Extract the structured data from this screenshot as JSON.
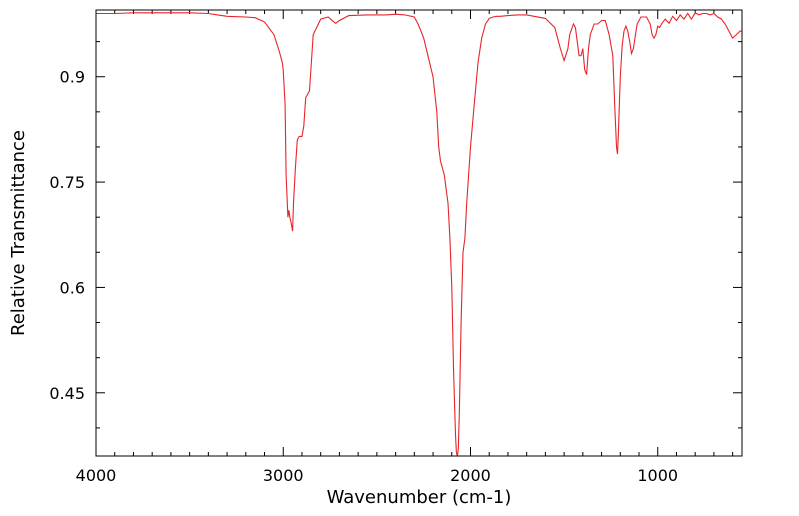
{
  "chart_data": {
    "type": "line",
    "title": "",
    "xlabel": "Wavenumber (cm-1)",
    "ylabel": "Relative Transmittance",
    "x_reversed": true,
    "xlim": [
      4000,
      550
    ],
    "ylim": [
      0.36,
      0.995
    ],
    "grid": false,
    "legend": "none",
    "xticks": [
      {
        "value": 4000,
        "label": "4000"
      },
      {
        "value": 3000,
        "label": "3000"
      },
      {
        "value": 2000,
        "label": "2000"
      },
      {
        "value": 1000,
        "label": "1000"
      }
    ],
    "yticks": [
      {
        "value": 0.9,
        "label": "0.9"
      },
      {
        "value": 0.75,
        "label": "0.75"
      },
      {
        "value": 0.6,
        "label": "0.6"
      },
      {
        "value": 0.45,
        "label": "0.45"
      }
    ],
    "series": [
      {
        "color": "#e8242a",
        "x": [
          4000,
          3900,
          3800,
          3700,
          3600,
          3500,
          3400,
          3350,
          3300,
          3200,
          3150,
          3100,
          3050,
          3020,
          3005,
          3000,
          2990,
          2985,
          2975,
          2970,
          2965,
          2960,
          2950,
          2945,
          2935,
          2925,
          2915,
          2900,
          2890,
          2880,
          2860,
          2840,
          2800,
          2760,
          2730,
          2720,
          2700,
          2650,
          2550,
          2450,
          2400,
          2350,
          2300,
          2280,
          2250,
          2200,
          2180,
          2170,
          2160,
          2150,
          2140,
          2120,
          2110,
          2100,
          2090,
          2080,
          2075,
          2070,
          2065,
          2060,
          2050,
          2040,
          2030,
          2020,
          2000,
          1980,
          1960,
          1940,
          1920,
          1900,
          1880,
          1860,
          1840,
          1800,
          1750,
          1700,
          1600,
          1550,
          1520,
          1500,
          1480,
          1470,
          1450,
          1440,
          1420,
          1410,
          1400,
          1390,
          1380,
          1370,
          1360,
          1340,
          1320,
          1300,
          1280,
          1260,
          1240,
          1230,
          1220,
          1215,
          1210,
          1200,
          1190,
          1180,
          1170,
          1160,
          1150,
          1140,
          1130,
          1110,
          1090,
          1060,
          1040,
          1030,
          1020,
          1010,
          1000,
          990,
          980,
          960,
          940,
          920,
          900,
          880,
          860,
          840,
          820,
          800,
          780,
          760,
          740,
          720,
          700,
          680,
          660,
          640,
          620,
          600,
          580,
          560,
          550
        ],
        "y": [
          0.99,
          0.99,
          0.991,
          0.991,
          0.991,
          0.991,
          0.99,
          0.988,
          0.986,
          0.985,
          0.984,
          0.978,
          0.96,
          0.935,
          0.92,
          0.91,
          0.86,
          0.76,
          0.7,
          0.71,
          0.7,
          0.695,
          0.68,
          0.72,
          0.77,
          0.81,
          0.815,
          0.815,
          0.83,
          0.87,
          0.88,
          0.96,
          0.982,
          0.985,
          0.978,
          0.976,
          0.98,
          0.987,
          0.988,
          0.988,
          0.989,
          0.988,
          0.985,
          0.975,
          0.955,
          0.9,
          0.85,
          0.8,
          0.78,
          0.77,
          0.76,
          0.72,
          0.67,
          0.6,
          0.48,
          0.39,
          0.365,
          0.36,
          0.37,
          0.42,
          0.55,
          0.65,
          0.67,
          0.72,
          0.8,
          0.86,
          0.92,
          0.955,
          0.975,
          0.983,
          0.985,
          0.986,
          0.986,
          0.987,
          0.988,
          0.988,
          0.983,
          0.97,
          0.94,
          0.923,
          0.94,
          0.96,
          0.975,
          0.97,
          0.93,
          0.93,
          0.94,
          0.91,
          0.903,
          0.94,
          0.96,
          0.975,
          0.975,
          0.98,
          0.98,
          0.96,
          0.93,
          0.86,
          0.8,
          0.79,
          0.82,
          0.9,
          0.945,
          0.965,
          0.972,
          0.965,
          0.95,
          0.933,
          0.94,
          0.975,
          0.985,
          0.985,
          0.975,
          0.96,
          0.955,
          0.96,
          0.972,
          0.97,
          0.975,
          0.982,
          0.976,
          0.986,
          0.98,
          0.988,
          0.982,
          0.99,
          0.982,
          0.991,
          0.988,
          0.99,
          0.99,
          0.988,
          0.99,
          0.985,
          0.982,
          0.975,
          0.965,
          0.955,
          0.96,
          0.965,
          0.965
        ]
      }
    ]
  }
}
